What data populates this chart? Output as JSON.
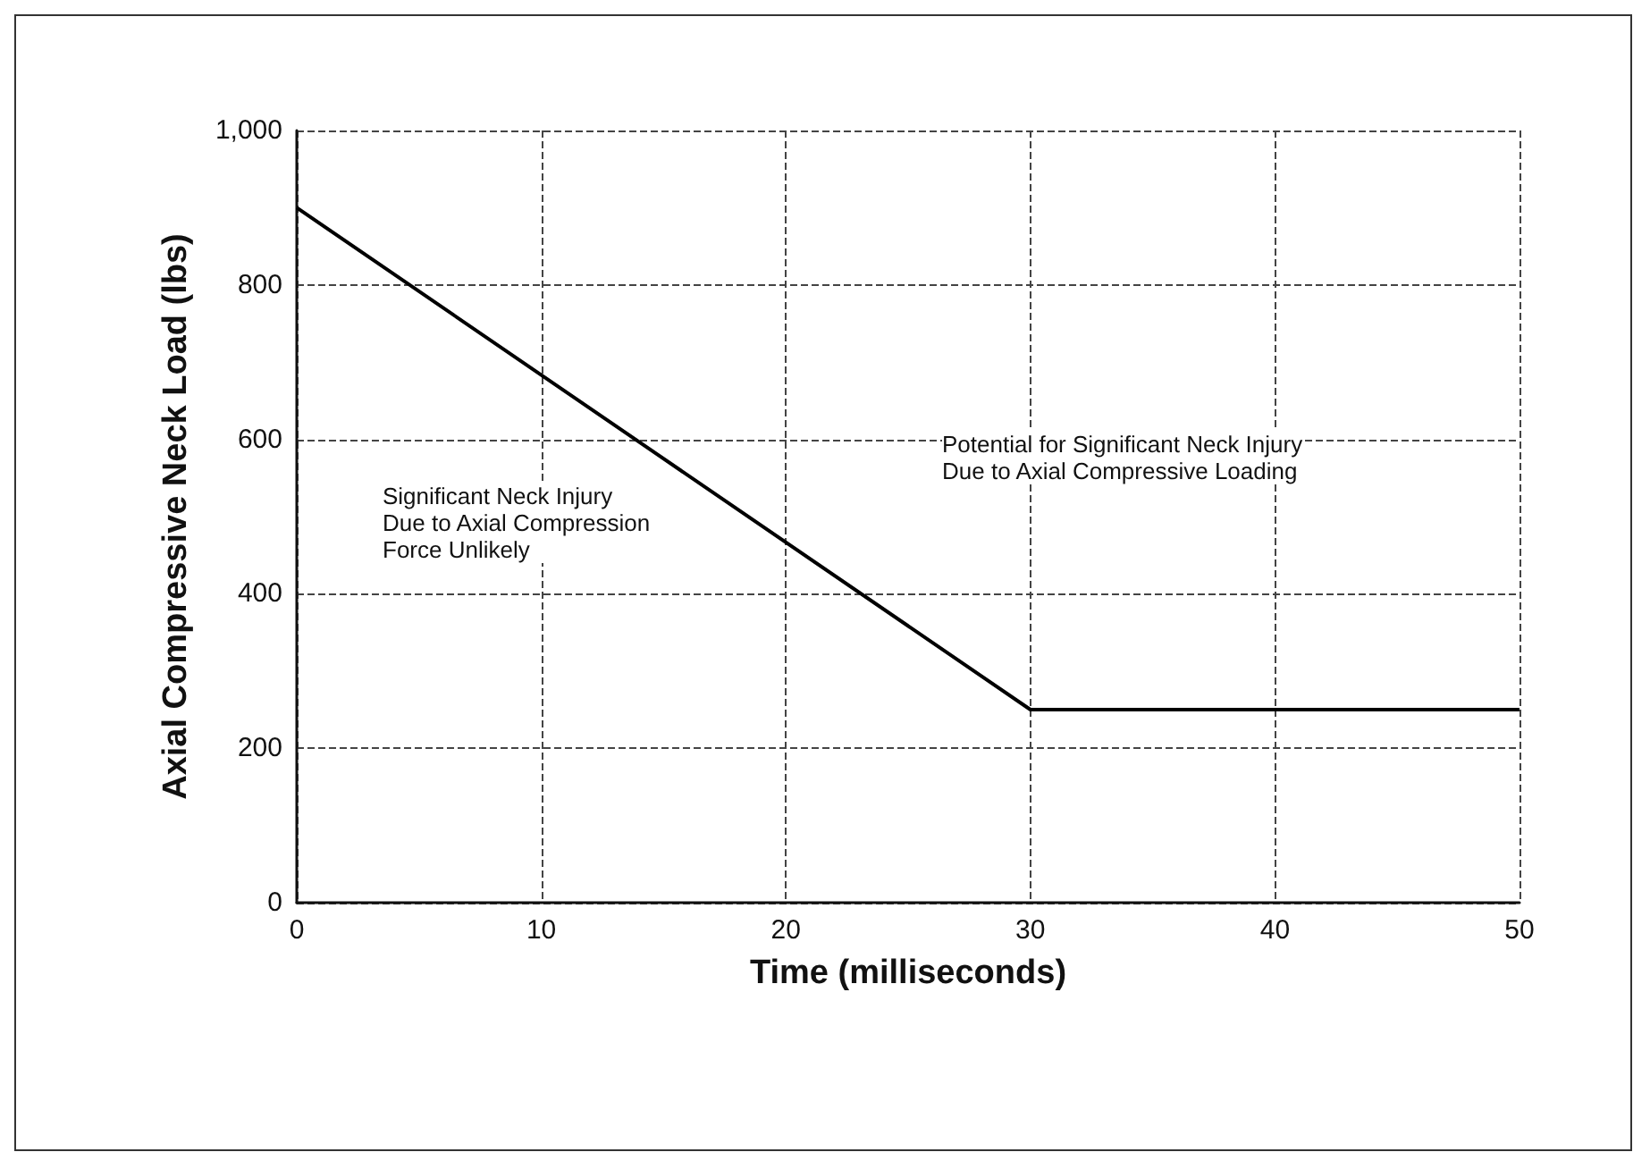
{
  "chart_data": {
    "type": "line",
    "xlabel": "Time (milliseconds)",
    "ylabel": "Axial Compressive Neck Load (lbs)",
    "x": [
      0,
      30,
      50
    ],
    "series": [
      {
        "color": "#000000",
        "values": [
          900,
          250,
          250
        ]
      }
    ],
    "xlim": [
      0,
      50
    ],
    "xticks": [
      0,
      10,
      20,
      30,
      40,
      50
    ],
    "ylim": [
      0,
      1000
    ],
    "yticks": [
      0,
      200,
      400,
      600,
      800,
      {
        "value": 1000,
        "label": "1,000"
      }
    ],
    "grid": true,
    "marker": "none",
    "line_style": "solid",
    "annotations": [
      "Potential for Significant Neck Injury\nDue to Axial Compressive Loading",
      "Significant Neck Injury\nDue to Axial Compression\nForce Unlikely"
    ]
  }
}
